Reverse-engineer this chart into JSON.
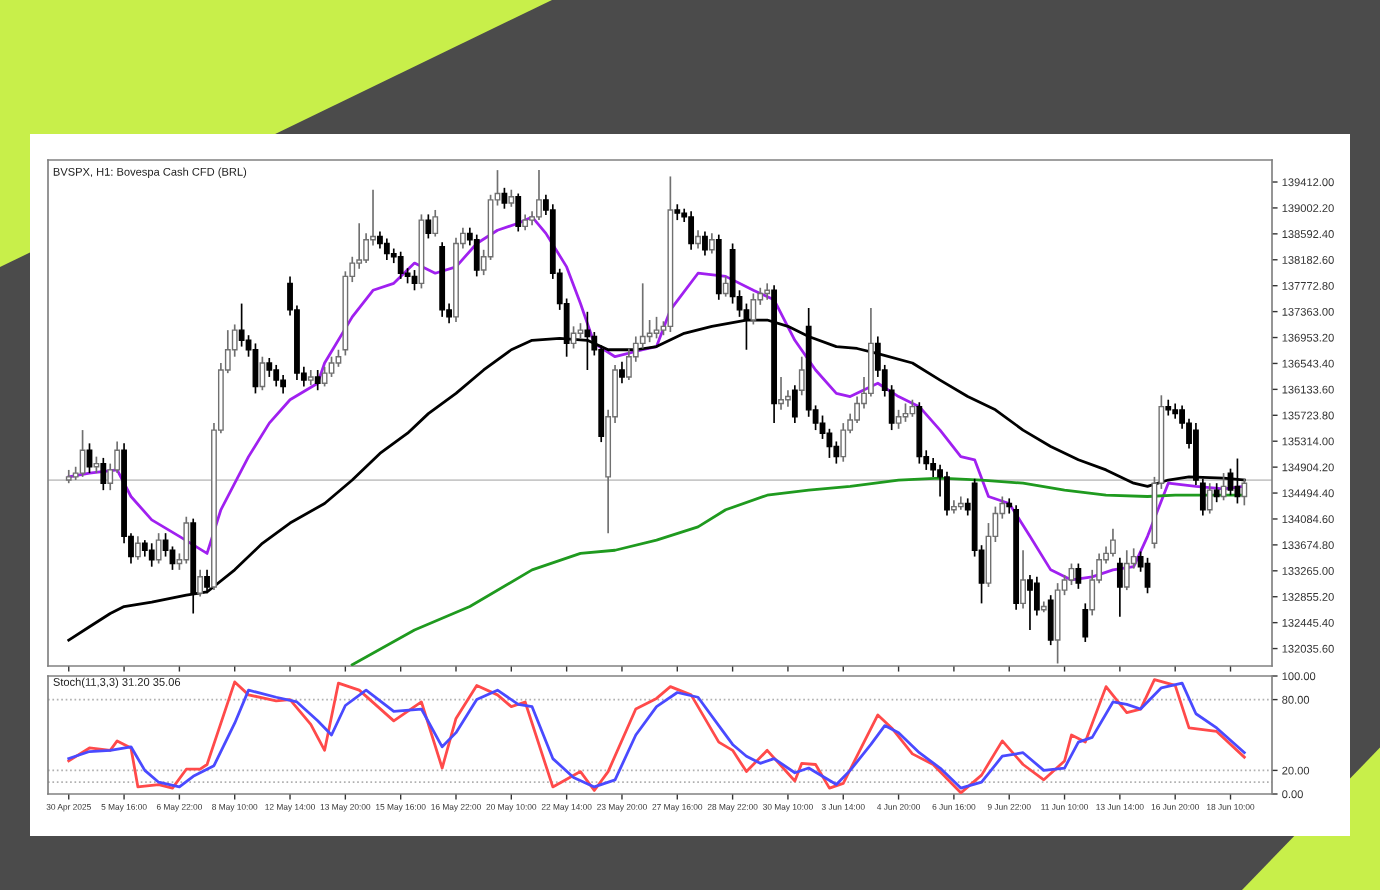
{
  "chart_data": [
    {
      "type": "candlestick",
      "title": "BVSPX, H1: Bovespa Cash CFD (BRL)",
      "tick_labels": "y",
      "grid": false,
      "categories": [
        null,
        null,
        null,
        null,
        null,
        null,
        null,
        null,
        null,
        null,
        null,
        null,
        null,
        null,
        null,
        null,
        null,
        null,
        null,
        null,
        null,
        null,
        null,
        null,
        null,
        null,
        null,
        null,
        null,
        null,
        null,
        null,
        null,
        null,
        null,
        null,
        null,
        null,
        null,
        null,
        null,
        null,
        null,
        null,
        null,
        null,
        null,
        null,
        null,
        null,
        null,
        null,
        null,
        null,
        null,
        null,
        null,
        null,
        null,
        null,
        null,
        null,
        null,
        null,
        null,
        null,
        null,
        null,
        null,
        null,
        null,
        null,
        null,
        null,
        null,
        null,
        null,
        null,
        null,
        null,
        null,
        null,
        null,
        null,
        null,
        null,
        null,
        null,
        null,
        null,
        null,
        null,
        null,
        null,
        null,
        null,
        null,
        null,
        null,
        null,
        null,
        null,
        null,
        null,
        null,
        null,
        null,
        null,
        null,
        null,
        null,
        null,
        null,
        null,
        null,
        null,
        null,
        null,
        null,
        null,
        null,
        null,
        null,
        null,
        null,
        null,
        null,
        null,
        null,
        null,
        null,
        null,
        null,
        null,
        null,
        null,
        null,
        null,
        null,
        null,
        null,
        null,
        null,
        null,
        null,
        null,
        null,
        null,
        null,
        null,
        null,
        null,
        null,
        null,
        null,
        null,
        null,
        null,
        null,
        null,
        null,
        null,
        null,
        null,
        null,
        null,
        null,
        null,
        null,
        null,
        null
      ],
      "ohlc": [
        [
          134700,
          134860,
          134650,
          134750
        ],
        [
          134750,
          134910,
          134700,
          134810
        ],
        [
          134810,
          135490,
          134750,
          135170
        ],
        [
          135170,
          135280,
          134810,
          134910
        ],
        [
          134910,
          135070,
          134810,
          134960
        ],
        [
          134960,
          135050,
          134540,
          134650
        ],
        [
          134650,
          134960,
          134540,
          134860
        ],
        [
          134860,
          135310,
          134810,
          135170
        ],
        [
          135170,
          135280,
          133700,
          133810
        ],
        [
          133810,
          133860,
          133380,
          133490
        ],
        [
          133490,
          133810,
          133440,
          133700
        ],
        [
          133700,
          133750,
          133490,
          133590
        ],
        [
          133590,
          133700,
          133330,
          133440
        ],
        [
          133440,
          133860,
          133380,
          133750
        ],
        [
          133750,
          133860,
          133490,
          133590
        ],
        [
          133590,
          133650,
          133280,
          133380
        ],
        [
          133380,
          133540,
          133280,
          133440
        ],
        [
          133440,
          134120,
          133380,
          134020
        ],
        [
          134020,
          134090,
          132590,
          132910
        ],
        [
          132910,
          133280,
          132860,
          133170
        ],
        [
          133170,
          133280,
          132910,
          133010
        ],
        [
          133010,
          135600,
          132960,
          135490
        ],
        [
          135490,
          136550,
          135440,
          136440
        ],
        [
          136440,
          137070,
          136390,
          136760
        ],
        [
          136760,
          137160,
          136650,
          137070
        ],
        [
          137070,
          137490,
          136810,
          136910
        ],
        [
          136910,
          136990,
          136650,
          136760
        ],
        [
          136760,
          136860,
          136070,
          136180
        ],
        [
          136180,
          136650,
          136120,
          136550
        ],
        [
          136550,
          136630,
          136330,
          136440
        ],
        [
          136440,
          136520,
          136180,
          136280
        ],
        [
          136280,
          136360,
          136070,
          136180
        ],
        [
          137810,
          137920,
          137300,
          137390
        ],
        [
          137390,
          137460,
          136280,
          136390
        ],
        [
          136390,
          136490,
          136180,
          136280
        ],
        [
          136280,
          136440,
          136200,
          136330
        ],
        [
          136330,
          136440,
          136120,
          136230
        ],
        [
          136230,
          136490,
          136180,
          136390
        ],
        [
          136390,
          136650,
          136330,
          136550
        ],
        [
          136550,
          136760,
          136490,
          136650
        ],
        [
          136760,
          138000,
          136670,
          137920
        ],
        [
          137920,
          138230,
          137830,
          138130
        ],
        [
          138130,
          138760,
          138040,
          138180
        ],
        [
          138180,
          138600,
          138130,
          138500
        ],
        [
          138500,
          139290,
          138410,
          138550
        ],
        [
          138550,
          138630,
          138360,
          138440
        ],
        [
          138440,
          138520,
          138180,
          138280
        ],
        [
          138280,
          138360,
          138130,
          138230
        ],
        [
          138230,
          138310,
          137880,
          137970
        ],
        [
          137970,
          138050,
          137810,
          137920
        ],
        [
          137920,
          138020,
          137700,
          137810
        ],
        [
          137810,
          138900,
          137730,
          138810
        ],
        [
          138810,
          138900,
          138520,
          138600
        ],
        [
          138600,
          138970,
          138550,
          138860
        ],
        [
          138390,
          138460,
          137280,
          137390
        ],
        [
          137390,
          137490,
          137180,
          137280
        ],
        [
          137280,
          138530,
          137200,
          138440
        ],
        [
          138440,
          138690,
          138360,
          138600
        ],
        [
          138600,
          138690,
          138410,
          138500
        ],
        [
          138500,
          138580,
          137920,
          138020
        ],
        [
          138020,
          138340,
          137940,
          138230
        ],
        [
          138230,
          139210,
          138180,
          139130
        ],
        [
          139130,
          139600,
          139040,
          139230
        ],
        [
          139230,
          139320,
          138990,
          139080
        ],
        [
          139080,
          139290,
          139020,
          139180
        ],
        [
          139180,
          139230,
          138630,
          138710
        ],
        [
          138710,
          138900,
          138650,
          138810
        ],
        [
          138810,
          138950,
          138730,
          138860
        ],
        [
          138860,
          139600,
          138810,
          139130
        ],
        [
          139130,
          139210,
          138890,
          138970
        ],
        [
          138970,
          139060,
          137880,
          137970
        ],
        [
          137970,
          138040,
          137390,
          137490
        ],
        [
          137490,
          137570,
          136650,
          136860
        ],
        [
          136860,
          137130,
          136780,
          137020
        ],
        [
          137020,
          137180,
          136940,
          137070
        ],
        [
          137070,
          137360,
          136440,
          136970
        ],
        [
          136970,
          137040,
          136670,
          136760
        ],
        [
          136760,
          136830,
          135300,
          135390
        ],
        [
          134750,
          135810,
          133860,
          135700
        ],
        [
          135700,
          136520,
          135600,
          136440
        ],
        [
          136440,
          136570,
          136230,
          136330
        ],
        [
          136330,
          136780,
          136280,
          136650
        ],
        [
          136650,
          136970,
          136570,
          136860
        ],
        [
          136860,
          137810,
          136780,
          136970
        ],
        [
          136970,
          137230,
          136880,
          137020
        ],
        [
          137020,
          137280,
          136940,
          137070
        ],
        [
          137070,
          137210,
          136990,
          137130
        ],
        [
          137130,
          139500,
          137040,
          138970
        ],
        [
          138970,
          139060,
          138810,
          138920
        ],
        [
          138920,
          138990,
          138780,
          138860
        ],
        [
          138860,
          138950,
          138340,
          138440
        ],
        [
          138440,
          138650,
          138360,
          138550
        ],
        [
          138550,
          138630,
          138250,
          138340
        ],
        [
          138340,
          138600,
          138280,
          138500
        ],
        [
          138500,
          138580,
          137550,
          137650
        ],
        [
          137650,
          137920,
          137600,
          137810
        ],
        [
          138340,
          138440,
          137490,
          137600
        ],
        [
          137600,
          137700,
          137280,
          137390
        ],
        [
          137390,
          137490,
          136760,
          137230
        ],
        [
          137230,
          137650,
          137160,
          137550
        ],
        [
          137550,
          137740,
          137470,
          137650
        ],
        [
          137650,
          137810,
          137550,
          137700
        ],
        [
          137700,
          137780,
          135600,
          135910
        ],
        [
          135910,
          136330,
          135810,
          135970
        ],
        [
          135970,
          136120,
          135860,
          136020
        ],
        [
          136120,
          136200,
          135600,
          135700
        ],
        [
          136120,
          136650,
          136040,
          136440
        ],
        [
          137130,
          137420,
          135700,
          135810
        ],
        [
          135810,
          135880,
          135490,
          135600
        ],
        [
          135600,
          135720,
          135350,
          135440
        ],
        [
          135440,
          135510,
          135050,
          135230
        ],
        [
          135230,
          135310,
          134960,
          135070
        ],
        [
          135070,
          135600,
          134990,
          135490
        ],
        [
          135490,
          135750,
          135440,
          135650
        ],
        [
          135650,
          136020,
          135600,
          135910
        ],
        [
          135910,
          136330,
          135830,
          136070
        ],
        [
          136070,
          137420,
          136020,
          136860
        ],
        [
          136860,
          136970,
          136330,
          136440
        ],
        [
          136440,
          136520,
          136020,
          136120
        ],
        [
          136120,
          136200,
          135490,
          135600
        ],
        [
          135600,
          135810,
          135510,
          135700
        ],
        [
          135700,
          135910,
          135620,
          135750
        ],
        [
          135750,
          135970,
          135700,
          135860
        ],
        [
          135860,
          135930,
          134960,
          135070
        ],
        [
          135070,
          135170,
          134860,
          134960
        ],
        [
          134960,
          135050,
          134750,
          134860
        ],
        [
          134860,
          134940,
          134440,
          134750
        ],
        [
          134750,
          134830,
          134140,
          134230
        ],
        [
          134230,
          134380,
          134170,
          134280
        ],
        [
          134280,
          134440,
          134230,
          134330
        ],
        [
          134330,
          134410,
          134140,
          134230
        ],
        [
          134650,
          134720,
          133490,
          133590
        ],
        [
          133590,
          133670,
          132750,
          133070
        ],
        [
          133070,
          134020,
          133010,
          133810
        ],
        [
          133810,
          134280,
          133720,
          134170
        ],
        [
          134170,
          134440,
          134090,
          134330
        ],
        [
          134330,
          134410,
          134170,
          134280
        ],
        [
          134230,
          134300,
          132650,
          132750
        ],
        [
          132750,
          133590,
          132670,
          133120
        ],
        [
          133120,
          133200,
          132330,
          132960
        ],
        [
          133070,
          133170,
          132560,
          132650
        ],
        [
          132650,
          132780,
          132610,
          132700
        ],
        [
          132800,
          132880,
          132090,
          132170
        ],
        [
          132170,
          133070,
          131800,
          132960
        ],
        [
          132960,
          133200,
          132880,
          133120
        ],
        [
          133120,
          133380,
          133040,
          133300
        ],
        [
          133300,
          133380,
          132980,
          133070
        ],
        [
          132650,
          132750,
          132140,
          132220
        ],
        [
          132650,
          133280,
          132560,
          133120
        ],
        [
          133120,
          133540,
          133070,
          133440
        ],
        [
          133440,
          133650,
          133380,
          133540
        ],
        [
          133540,
          133930,
          133490,
          133750
        ],
        [
          133380,
          133470,
          132540,
          133010
        ],
        [
          133010,
          133590,
          132960,
          133380
        ],
        [
          133380,
          133620,
          133300,
          133490
        ],
        [
          133490,
          133570,
          133250,
          133330
        ],
        [
          133380,
          133470,
          132910,
          133010
        ],
        [
          133700,
          134750,
          133620,
          134650
        ],
        [
          134650,
          136040,
          134560,
          135860
        ],
        [
          135860,
          135970,
          135720,
          135810
        ],
        [
          135810,
          135910,
          135670,
          135750
        ],
        [
          135810,
          135880,
          135510,
          135600
        ],
        [
          135600,
          135670,
          135200,
          135280
        ],
        [
          135490,
          135600,
          134620,
          134700
        ],
        [
          134650,
          134720,
          134140,
          134230
        ],
        [
          134230,
          134650,
          134170,
          134540
        ],
        [
          134540,
          134650,
          134350,
          134440
        ],
        [
          134440,
          134810,
          134380,
          134600
        ],
        [
          134810,
          134880,
          134460,
          134540
        ],
        [
          134600,
          135040,
          134330,
          134440
        ],
        [
          134440,
          134720,
          134300,
          134650
        ]
      ],
      "series": [
        {
          "type": "line",
          "color": "#a020f0",
          "values": [
            134750,
            null,
            null,
            134810,
            null,
            null,
            null,
            134860,
            null,
            134440,
            null,
            null,
            134070,
            null,
            null,
            null,
            133810,
            null,
            null,
            null,
            133540,
            null,
            134230,
            null,
            null,
            null,
            135070,
            null,
            null,
            135600,
            null,
            null,
            135970,
            null,
            null,
            null,
            136230,
            136550,
            null,
            null,
            null,
            137280,
            null,
            null,
            137700,
            null,
            null,
            137810,
            null,
            null,
            138130,
            null,
            null,
            137970,
            null,
            null,
            138070,
            null,
            null,
            138440,
            null,
            null,
            138650,
            null,
            null,
            138760,
            null,
            138860,
            null,
            138600,
            null,
            null,
            138070,
            null,
            137490,
            null,
            136860,
            null,
            null,
            136650,
            null,
            null,
            null,
            136760,
            null,
            136810,
            null,
            137390,
            null,
            null,
            null,
            137970,
            null,
            null,
            null,
            137920,
            null,
            null,
            null,
            137700,
            null,
            null,
            137550,
            null,
            null,
            136910,
            null,
            null,
            136440,
            null,
            null,
            136070,
            null,
            136020,
            null,
            null,
            null,
            136230,
            null,
            null,
            136020,
            null,
            null,
            135860,
            null,
            null,
            135490,
            null,
            null,
            135070,
            null,
            135020,
            null,
            134440,
            null,
            null,
            134330,
            null,
            null,
            133810,
            null,
            null,
            133280,
            null,
            null,
            133120,
            null,
            null,
            133170,
            null,
            null,
            133280,
            null,
            null,
            133330,
            null,
            133810,
            null,
            null,
            134650,
            null,
            null,
            null,
            134600,
            null,
            null,
            null,
            134560,
            null,
            null,
            134600
          ]
        },
        {
          "type": "line",
          "color": "#000000",
          "values": [
            132170,
            null,
            null,
            132380,
            null,
            null,
            132590,
            null,
            132700,
            null,
            null,
            null,
            132770,
            null,
            null,
            null,
            null,
            132880,
            null,
            null,
            132930,
            null,
            null,
            null,
            133280,
            null,
            null,
            null,
            133700,
            null,
            null,
            null,
            134020,
            null,
            null,
            null,
            null,
            134330,
            null,
            null,
            null,
            134700,
            null,
            null,
            null,
            135120,
            null,
            null,
            null,
            135440,
            null,
            null,
            135750,
            null,
            null,
            null,
            136070,
            null,
            null,
            null,
            136440,
            null,
            null,
            null,
            136760,
            null,
            null,
            136910,
            null,
            null,
            null,
            136940,
            null,
            null,
            null,
            136910,
            null,
            null,
            136760,
            null,
            null,
            null,
            136760,
            null,
            null,
            136810,
            null,
            null,
            null,
            137020,
            null,
            null,
            null,
            137130,
            null,
            null,
            null,
            null,
            137230,
            null,
            null,
            137230,
            null,
            null,
            137130,
            null,
            null,
            136970,
            null,
            null,
            null,
            136810,
            null,
            null,
            136780,
            null,
            null,
            136700,
            null,
            null,
            null,
            null,
            136550,
            null,
            null,
            null,
            136280,
            null,
            null,
            null,
            136020,
            null,
            null,
            null,
            135810,
            null,
            null,
            null,
            135490,
            null,
            null,
            null,
            135230,
            null,
            null,
            null,
            135020,
            null,
            null,
            null,
            134860,
            null,
            null,
            null,
            134650,
            null,
            134600,
            null,
            null,
            134700,
            null,
            null,
            134750,
            null,
            null,
            null,
            null,
            134730,
            null,
            null,
            134700
          ]
        },
        {
          "type": "line",
          "color": "#1f9a1f",
          "values": [
            null,
            null,
            null,
            null,
            null,
            null,
            null,
            null,
            null,
            null,
            null,
            null,
            null,
            null,
            null,
            null,
            null,
            null,
            null,
            null,
            null,
            null,
            null,
            null,
            null,
            null,
            null,
            null,
            null,
            null,
            null,
            null,
            null,
            null,
            null,
            null,
            null,
            null,
            null,
            null,
            null,
            131780,
            null,
            null,
            null,
            null,
            null,
            null,
            null,
            null,
            132330,
            null,
            null,
            null,
            null,
            null,
            null,
            null,
            132700,
            null,
            null,
            null,
            null,
            null,
            null,
            null,
            null,
            133280,
            null,
            null,
            null,
            null,
            null,
            null,
            133540,
            null,
            null,
            null,
            null,
            133590,
            null,
            null,
            null,
            null,
            null,
            133750,
            null,
            null,
            null,
            null,
            null,
            133960,
            null,
            null,
            null,
            134230,
            null,
            null,
            null,
            null,
            null,
            134460,
            null,
            null,
            null,
            null,
            null,
            134540,
            null,
            null,
            null,
            null,
            null,
            134600,
            null,
            null,
            null,
            null,
            null,
            null,
            134700,
            null,
            null,
            null,
            null,
            null,
            134730,
            null,
            null,
            null,
            null,
            null,
            134700,
            null,
            null,
            null,
            null,
            null,
            134650,
            null,
            null,
            null,
            null,
            null,
            134540,
            null,
            null,
            null,
            null,
            null,
            134460,
            null,
            null,
            null,
            null,
            null,
            134440,
            null,
            null,
            null,
            134460,
            null,
            null,
            null,
            null,
            null,
            null,
            134460,
            null,
            null,
            134460
          ]
        }
      ],
      "ylim": [
        131760,
        139760
      ],
      "yticks": [
        {
          "value": 139412,
          "label": "139412.00"
        },
        {
          "value": 139002.2,
          "label": "139002.20"
        },
        {
          "value": 138592.4,
          "label": "138592.40"
        },
        {
          "value": 138182.6,
          "label": "138182.60"
        },
        {
          "value": 137772.8,
          "label": "137772.80"
        },
        {
          "value": 137363,
          "label": "137363.00"
        },
        {
          "value": 136953.2,
          "label": "136953.20"
        },
        {
          "value": 136543.4,
          "label": "136543.40"
        },
        {
          "value": 136133.6,
          "label": "136133.60"
        },
        {
          "value": 135723.8,
          "label": "135723.80"
        },
        {
          "value": 135314,
          "label": "135314.00"
        },
        {
          "value": 134904.2,
          "label": "134904.20"
        },
        {
          "value": 134494.4,
          "label": "134494.40"
        },
        {
          "value": 134084.6,
          "label": "134084.60"
        },
        {
          "value": 133674.8,
          "label": "133674.80"
        },
        {
          "value": 133265,
          "label": "133265.00"
        },
        {
          "value": 132855.2,
          "label": "132855.20"
        },
        {
          "value": 132445.4,
          "label": "132445.40"
        },
        {
          "value": 132035.6,
          "label": "132035.60"
        }
      ],
      "ref_lines": [
        {
          "axis": "y",
          "value": 134700,
          "color": "#c8c8c8",
          "line_style": "solid"
        }
      ]
    },
    {
      "type": "line",
      "title": "Stoch(11,3,3) 31.20 35.06",
      "grid": false,
      "categories": [
        "30 Apr 2025",
        null,
        null,
        null,
        null,
        null,
        null,
        null,
        "5 May 16:00",
        null,
        null,
        null,
        null,
        null,
        null,
        null,
        "6 May 22:00",
        null,
        null,
        null,
        null,
        null,
        null,
        null,
        "8 May 10:00",
        null,
        null,
        null,
        null,
        null,
        null,
        null,
        "12 May 14:00",
        null,
        null,
        null,
        null,
        null,
        null,
        null,
        "13 May 20:00",
        null,
        null,
        null,
        null,
        null,
        null,
        null,
        "15 May 16:00",
        null,
        null,
        null,
        null,
        null,
        null,
        null,
        "16 May 22:00",
        null,
        null,
        null,
        null,
        null,
        null,
        null,
        "20 May 10:00",
        null,
        null,
        null,
        null,
        null,
        null,
        null,
        "22 May 14:00",
        null,
        null,
        null,
        null,
        null,
        null,
        null,
        "23 May 20:00",
        null,
        null,
        null,
        null,
        null,
        null,
        null,
        "27 May 16:00",
        null,
        null,
        null,
        null,
        null,
        null,
        null,
        "28 May 22:00",
        null,
        null,
        null,
        null,
        null,
        null,
        null,
        "30 May 10:00",
        null,
        null,
        null,
        null,
        null,
        null,
        null,
        "3 Jun 14:00",
        null,
        null,
        null,
        null,
        null,
        null,
        null,
        "4 Jun 20:00",
        null,
        null,
        null,
        null,
        null,
        null,
        null,
        "6 Jun 16:00",
        null,
        null,
        null,
        null,
        null,
        null,
        null,
        "9 Jun 22:00",
        null,
        null,
        null,
        null,
        null,
        null,
        null,
        "11 Jun 10:00",
        null,
        null,
        null,
        null,
        null,
        null,
        null,
        "13 Jun 14:00",
        null,
        null,
        null,
        null,
        null,
        null,
        null,
        "16 Jun 20:00",
        null,
        null,
        null,
        null,
        null,
        null,
        null,
        "18 Jun 10:00",
        null,
        null
      ],
      "series": [
        {
          "color": "#ff4a4a",
          "values": [
            28,
            null,
            null,
            39,
            null,
            null,
            37,
            45,
            null,
            39,
            6,
            null,
            null,
            8,
            null,
            5,
            null,
            21,
            null,
            21,
            25,
            null,
            null,
            null,
            95,
            null,
            84,
            null,
            null,
            null,
            79,
            null,
            80,
            null,
            null,
            59,
            null,
            37,
            null,
            94,
            null,
            null,
            88,
            null,
            null,
            null,
            null,
            62,
            null,
            null,
            null,
            78,
            null,
            null,
            22,
            null,
            64,
            null,
            null,
            92,
            null,
            null,
            84,
            null,
            74,
            null,
            78,
            null,
            null,
            null,
            6,
            null,
            null,
            null,
            19,
            null,
            3,
            null,
            19,
            null,
            null,
            null,
            72,
            null,
            null,
            81,
            null,
            91,
            null,
            null,
            84,
            null,
            null,
            null,
            44,
            null,
            37,
            null,
            19,
            null,
            null,
            37,
            null,
            null,
            null,
            11,
            26,
            null,
            25,
            null,
            5,
            null,
            9,
            null,
            null,
            44,
            null,
            67,
            null,
            56,
            null,
            null,
            34,
            null,
            null,
            25,
            null,
            null,
            null,
            1,
            null,
            null,
            16,
            null,
            null,
            45,
            null,
            null,
            25,
            null,
            null,
            12,
            null,
            null,
            28,
            50,
            null,
            44,
            null,
            null,
            91,
            null,
            null,
            69,
            null,
            72,
            null,
            97,
            null,
            null,
            92,
            null,
            56,
            null,
            null,
            null,
            53,
            null,
            null,
            null,
            31.2
          ]
        },
        {
          "color": "#4a4aff",
          "values": [
            30,
            null,
            null,
            36,
            null,
            null,
            37,
            null,
            null,
            40,
            null,
            20,
            null,
            10,
            null,
            null,
            6,
            null,
            15,
            null,
            null,
            24,
            null,
            null,
            60,
            null,
            88,
            null,
            null,
            null,
            82,
            null,
            null,
            78,
            null,
            null,
            62,
            null,
            50,
            null,
            75,
            null,
            null,
            88,
            null,
            null,
            null,
            70,
            null,
            null,
            null,
            72,
            null,
            null,
            40,
            null,
            52,
            null,
            null,
            80,
            null,
            null,
            88,
            null,
            null,
            76,
            null,
            74,
            null,
            null,
            30,
            null,
            null,
            14,
            null,
            null,
            6,
            null,
            null,
            12,
            null,
            null,
            50,
            null,
            null,
            74,
            null,
            null,
            86,
            null,
            null,
            82,
            null,
            null,
            58,
            null,
            42,
            null,
            32,
            null,
            26,
            null,
            30,
            null,
            null,
            18,
            null,
            22,
            null,
            15,
            null,
            8,
            null,
            20,
            null,
            null,
            42,
            null,
            58,
            null,
            52,
            null,
            null,
            35,
            null,
            null,
            22,
            null,
            null,
            5,
            null,
            null,
            10,
            null,
            null,
            32,
            null,
            null,
            35,
            null,
            null,
            20,
            null,
            null,
            22,
            null,
            44,
            null,
            48,
            null,
            null,
            78,
            null,
            76,
            null,
            72,
            null,
            null,
            90,
            null,
            null,
            94,
            null,
            68,
            null,
            null,
            56,
            null,
            null,
            null,
            35.06
          ]
        }
      ],
      "ylim": [
        0,
        100
      ],
      "yticks": [
        {
          "value": 100,
          "label": "100.00"
        },
        {
          "value": 80,
          "label": "80.00"
        },
        {
          "value": 20,
          "label": "20.00"
        },
        {
          "value": 0,
          "label": "0.00"
        }
      ],
      "ref_lines": [
        {
          "axis": "y",
          "value": 80,
          "color": "#b0b0b0",
          "line_style": "dotted"
        },
        {
          "axis": "y",
          "value": 20,
          "color": "#b0b0b0",
          "line_style": "dotted"
        },
        {
          "axis": "y",
          "value": 10,
          "color": "#b0b0b0",
          "line_style": "dotted"
        }
      ]
    }
  ]
}
